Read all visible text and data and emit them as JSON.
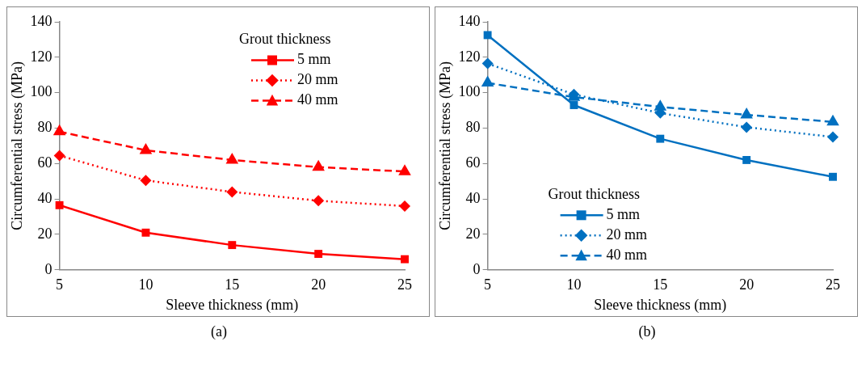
{
  "chart_data": [
    {
      "type": "line",
      "xlabel": "Sleeve thickness (mm)",
      "ylabel": "Circumferential stress (MPa)",
      "legend_title": "Grout thickness",
      "legend": "top right",
      "grid": false,
      "x": [
        5,
        10,
        15,
        20,
        25
      ],
      "xlim": [
        5,
        25
      ],
      "xticks": [
        5,
        10,
        15,
        20,
        25
      ],
      "ylim": [
        0,
        140
      ],
      "yticks": [
        0,
        20,
        40,
        60,
        80,
        100,
        120,
        140
      ],
      "series": [
        {
          "name": "5 mm",
          "color": "#ff0000",
          "marker": "square",
          "line_style": "solid",
          "values": [
            36.5,
            21,
            14,
            9,
            6
          ]
        },
        {
          "name": "20 mm",
          "color": "#ff0000",
          "marker": "diamond",
          "line_style": "dotted",
          "values": [
            64.5,
            50.5,
            44,
            39,
            36
          ]
        },
        {
          "name": "40 mm",
          "color": "#ff0000",
          "marker": "triangle",
          "line_style": "dashed",
          "values": [
            78,
            67.5,
            62,
            58,
            55.5
          ]
        }
      ],
      "annotations": [
        "(a)"
      ]
    },
    {
      "type": "line",
      "xlabel": "Sleeve thickness (mm)",
      "ylabel": "Circumferential stress (MPa)",
      "legend_title": "Grout thickness",
      "legend": "bottom",
      "grid": false,
      "x": [
        5,
        10,
        15,
        20,
        25
      ],
      "xlim": [
        5,
        25
      ],
      "xticks": [
        5,
        10,
        15,
        20,
        25
      ],
      "ylim": [
        0,
        140
      ],
      "yticks": [
        0,
        20,
        40,
        60,
        80,
        100,
        120,
        140
      ],
      "series": [
        {
          "name": "5 mm",
          "color": "#0070c0",
          "marker": "square",
          "line_style": "solid",
          "values": [
            132.5,
            93,
            74,
            62,
            52.5
          ]
        },
        {
          "name": "20 mm",
          "color": "#0070c0",
          "marker": "diamond",
          "line_style": "dotted",
          "values": [
            116.5,
            99,
            88.5,
            80.5,
            75
          ]
        },
        {
          "name": "40 mm",
          "color": "#0070c0",
          "marker": "triangle",
          "line_style": "dashed",
          "values": [
            105.5,
            97.5,
            92,
            87.5,
            83.5
          ]
        }
      ],
      "annotations": [
        "(b)"
      ]
    }
  ]
}
